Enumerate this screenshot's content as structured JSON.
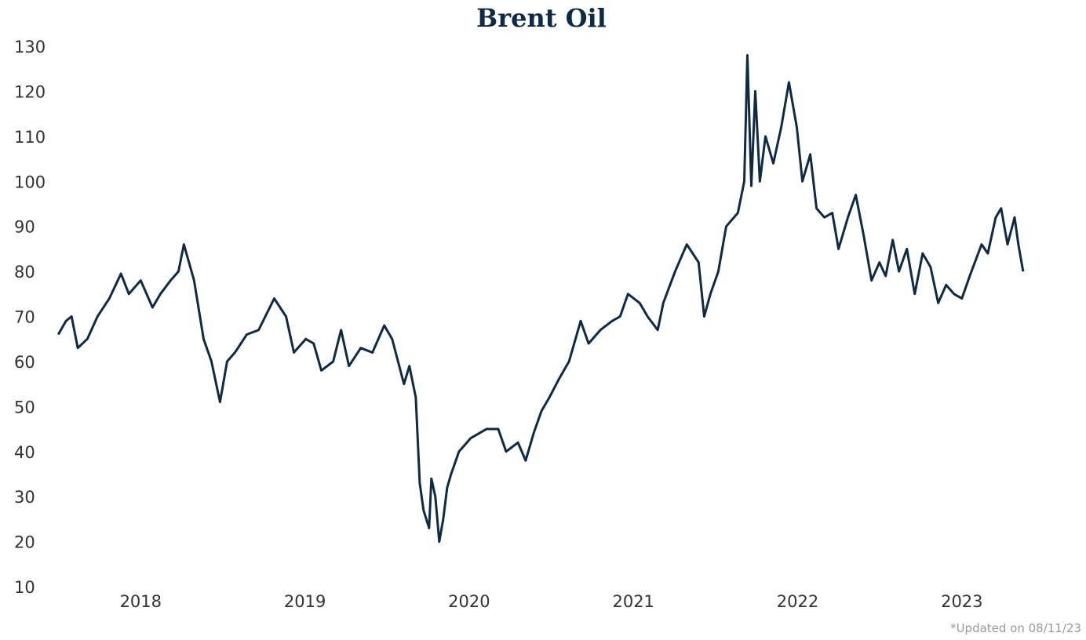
{
  "chart_data": {
    "type": "line",
    "title": "Brent Oil",
    "footnote": "*Updated on  08/11/23",
    "xlim": [
      2017.43,
      2023.45
    ],
    "xticks": [
      2018,
      2019,
      2020,
      2021,
      2022,
      2023
    ],
    "ylim": [
      10,
      130
    ],
    "yticks": [
      10,
      20,
      30,
      40,
      50,
      60,
      70,
      80,
      90,
      100,
      110,
      120,
      130
    ],
    "grid": false,
    "series": [
      {
        "name": "Brent Oil",
        "color": "#0f2a44",
        "x": [
          2017.498,
          2017.545,
          2017.579,
          2017.617,
          2017.675,
          2017.737,
          2017.809,
          2017.88,
          2017.928,
          2018.0,
          2018.072,
          2018.12,
          2018.182,
          2018.23,
          2018.263,
          2018.325,
          2018.383,
          2018.431,
          2018.483,
          2018.526,
          2018.574,
          2018.646,
          2018.718,
          2018.813,
          2018.885,
          2018.933,
          2019.005,
          2019.053,
          2019.1,
          2019.172,
          2019.22,
          2019.268,
          2019.34,
          2019.411,
          2019.483,
          2019.531,
          2019.603,
          2019.636,
          2019.675,
          2019.699,
          2019.722,
          2019.756,
          2019.77,
          2019.794,
          2019.818,
          2019.842,
          2019.866,
          2019.89,
          2019.938,
          2020.01,
          2020.105,
          2020.177,
          2020.225,
          2020.297,
          2020.344,
          2020.392,
          2020.44,
          2020.488,
          2020.545,
          2020.608,
          2020.679,
          2020.727,
          2020.799,
          2020.871,
          2020.919,
          2020.967,
          2021.038,
          2021.086,
          2021.148,
          2021.182,
          2021.254,
          2021.325,
          2021.397,
          2021.431,
          2021.469,
          2021.517,
          2021.565,
          2021.636,
          2021.675,
          2021.694,
          2021.718,
          2021.742,
          2021.77,
          2021.804,
          2021.852,
          2021.9,
          2021.947,
          2021.995,
          2022.029,
          2022.077,
          2022.115,
          2022.163,
          2022.211,
          2022.249,
          2022.306,
          2022.354,
          2022.402,
          2022.45,
          2022.498,
          2022.536,
          2022.579,
          2022.617,
          2022.665,
          2022.713,
          2022.761,
          2022.809,
          2022.856,
          2022.904,
          2022.952,
          2023.0,
          2023.048,
          2023.12,
          2023.158,
          2023.206,
          2023.239,
          2023.278,
          2023.321,
          2023.344,
          2023.373
        ],
        "values": [
          66,
          69,
          70,
          63,
          65,
          70,
          74,
          79.5,
          75,
          78,
          72,
          75,
          78,
          80,
          86,
          78,
          65,
          60,
          51,
          60,
          62,
          66,
          67,
          74,
          70,
          62,
          65,
          64,
          58,
          60,
          67,
          59,
          63,
          62,
          68,
          65,
          55,
          59,
          52,
          33,
          27,
          23,
          34,
          30,
          20,
          25,
          32,
          35,
          40,
          43,
          45,
          45,
          40,
          42,
          38,
          44,
          49,
          52,
          56,
          60,
          69,
          64,
          67,
          69,
          70,
          75,
          73,
          70,
          67,
          73,
          80,
          86,
          82,
          70,
          75,
          80,
          90,
          93,
          100,
          128,
          99,
          120,
          100,
          110,
          104,
          112,
          122,
          112,
          100,
          106,
          94,
          92,
          93,
          85,
          92,
          97,
          88,
          78,
          82,
          79,
          87,
          80,
          85,
          75,
          84,
          81,
          73,
          77,
          75,
          74,
          79,
          86,
          84,
          92,
          94,
          86,
          92,
          86,
          80
        ]
      }
    ]
  }
}
